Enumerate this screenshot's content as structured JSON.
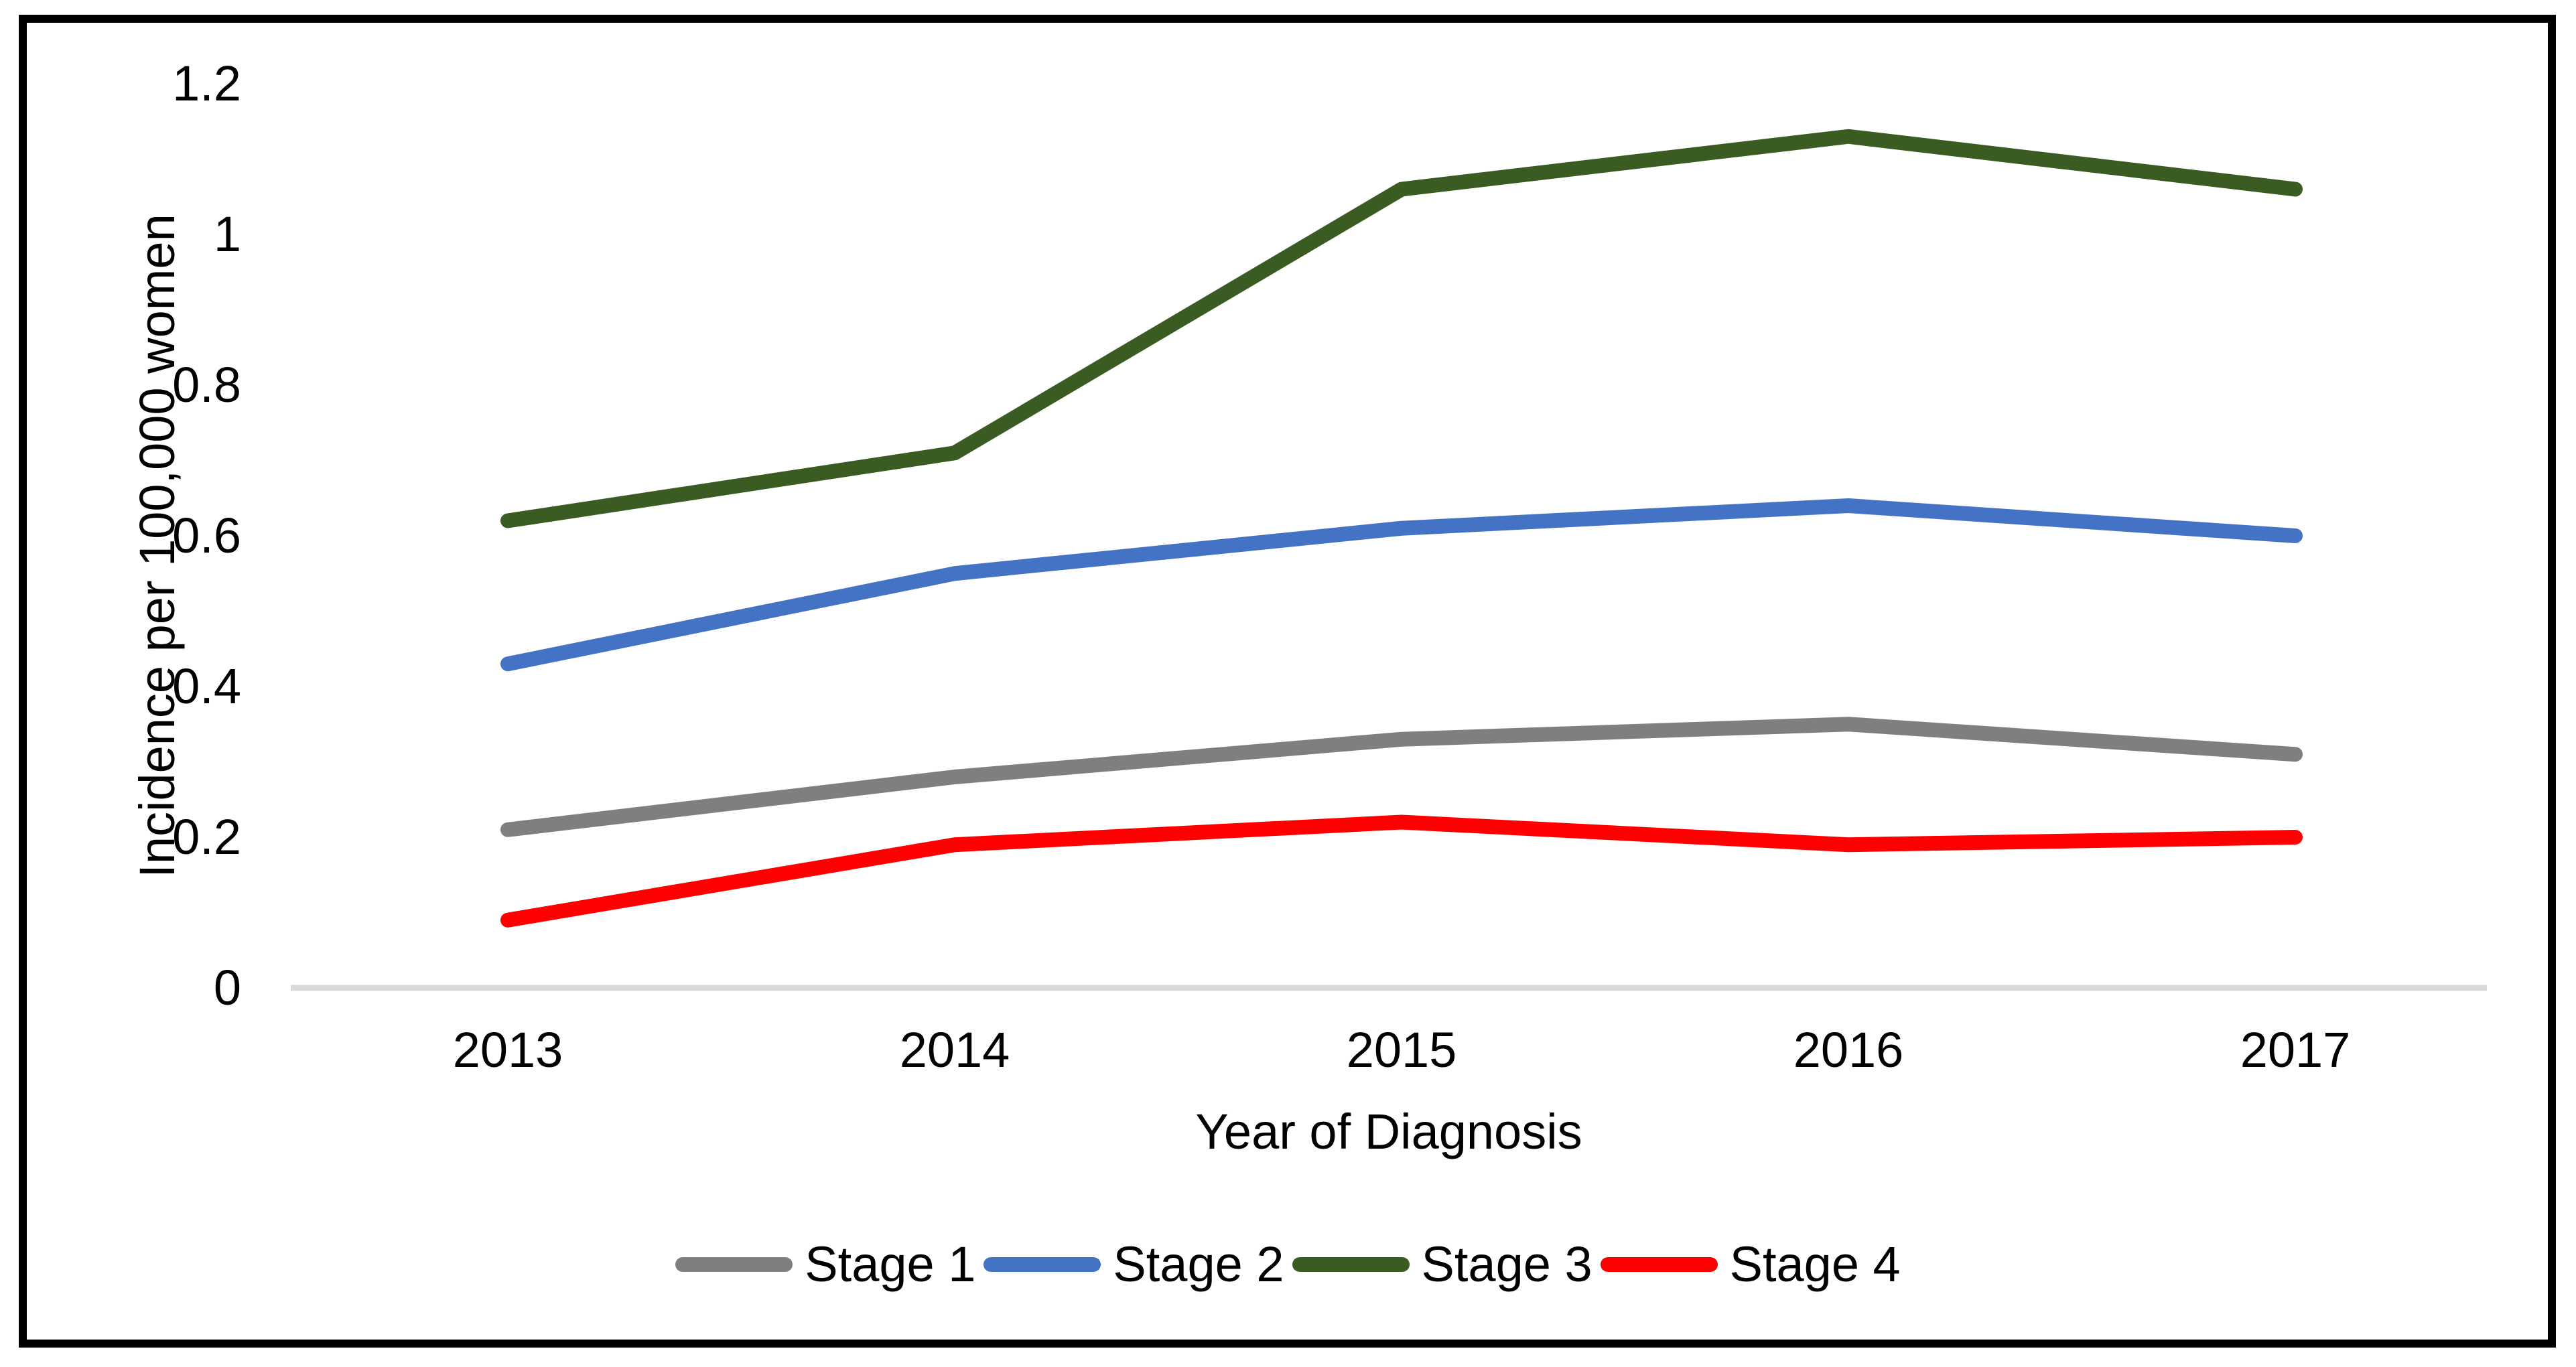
{
  "page": {
    "background": "#FFFFFF",
    "frame_border_color": "#000000",
    "text_color": "#000000"
  },
  "chart_data": {
    "type": "line",
    "title": "",
    "xlabel": "Year of Diagnosis",
    "ylabel": "Incidence per 100,000 women",
    "x": [
      2013,
      2014,
      2015,
      2016,
      2017
    ],
    "x_tick_labels": [
      "2013",
      "2014",
      "2015",
      "2016",
      "2017"
    ],
    "y_ticks": [
      1.2,
      1,
      0.8,
      0.6,
      0.4,
      0.2,
      0
    ],
    "y_tick_labels": [
      "1.2",
      "1",
      "0.8",
      "0.6",
      "0.4",
      "0.2",
      "0"
    ],
    "ylim": [
      0,
      1.2
    ],
    "grid": "zero-baseline-only",
    "gridline_color": "#D9D9D9",
    "legend_position": "bottom",
    "series": [
      {
        "name": "Stage 1",
        "color": "#7F7F7F",
        "values": [
          0.21,
          0.28,
          0.33,
          0.35,
          0.31
        ]
      },
      {
        "name": "Stage 2",
        "color": "#4472C4",
        "values": [
          0.43,
          0.55,
          0.61,
          0.64,
          0.6
        ]
      },
      {
        "name": "Stage 3",
        "color": "#3A5B22",
        "values": [
          0.62,
          0.71,
          1.06,
          1.13,
          1.06
        ]
      },
      {
        "name": "Stage 4",
        "color": "#FF0000",
        "values": [
          0.09,
          0.19,
          0.22,
          0.19,
          0.2
        ]
      }
    ]
  }
}
